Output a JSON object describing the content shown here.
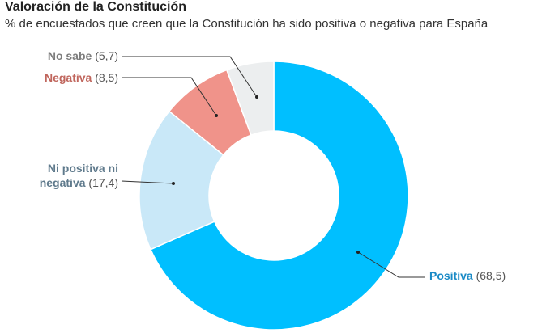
{
  "chart_data": {
    "type": "pie",
    "variant": "donut",
    "title": "Valoración de la Constitución",
    "subtitle": "% de encuestados que creen que la Constitución ha sido positiva o negativa para España",
    "slices": [
      {
        "label": "Positiva",
        "value": 68.5,
        "value_text": "(68,5)",
        "color": "#00bfff",
        "label_color": "#1a8ac6"
      },
      {
        "label": "Ni positiva ni negativa",
        "label_lines": [
          "Ni positiva ni",
          "negativa"
        ],
        "value": 17.4,
        "value_text": "(17,4)",
        "color": "#c9e8f8",
        "label_color": "#5f7a8c"
      },
      {
        "label": "Negativa",
        "value": 8.5,
        "value_text": "(8,5)",
        "color": "#f0938a",
        "label_color": "#c0665d"
      },
      {
        "label": "No sabe",
        "value": 5.7,
        "value_text": "(5,7)",
        "color": "#eceeef",
        "label_color": "#7d7d7d"
      }
    ]
  }
}
